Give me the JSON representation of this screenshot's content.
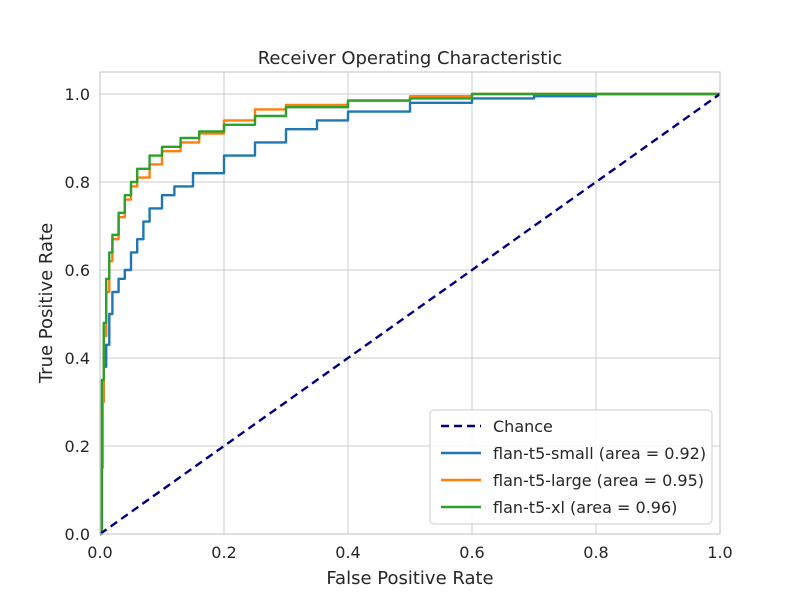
{
  "chart_data": {
    "type": "line",
    "title": "Receiver Operating Characteristic",
    "xlabel": "False Positive Rate",
    "ylabel": "True Positive Rate",
    "xlim": [
      0.0,
      1.0
    ],
    "ylim": [
      0.0,
      1.05
    ],
    "xticks": [
      "0.0",
      "0.2",
      "0.4",
      "0.6",
      "0.8",
      "1.0"
    ],
    "yticks": [
      "0.0",
      "0.2",
      "0.4",
      "0.6",
      "0.8",
      "1.0"
    ],
    "grid": true,
    "legend_position": "lower-right",
    "series": [
      {
        "name": "Chance",
        "color": "#000080",
        "dashed": true,
        "x": [
          0.0,
          1.0
        ],
        "y": [
          0.0,
          1.0
        ]
      },
      {
        "name": "flan-t5-small (area = 0.92)",
        "color": "#1f77b4",
        "dashed": false,
        "x": [
          0.0,
          0.002,
          0.004,
          0.006,
          0.01,
          0.015,
          0.02,
          0.03,
          0.04,
          0.05,
          0.06,
          0.07,
          0.08,
          0.1,
          0.12,
          0.15,
          0.2,
          0.25,
          0.3,
          0.35,
          0.4,
          0.5,
          0.6,
          0.7,
          0.8,
          1.0
        ],
        "y": [
          0.0,
          0.15,
          0.3,
          0.38,
          0.43,
          0.5,
          0.55,
          0.58,
          0.6,
          0.64,
          0.67,
          0.71,
          0.74,
          0.77,
          0.79,
          0.82,
          0.86,
          0.89,
          0.92,
          0.94,
          0.96,
          0.98,
          0.99,
          0.995,
          1.0,
          1.0
        ]
      },
      {
        "name": "flan-t5-large (area = 0.95)",
        "color": "#ff7f0e",
        "dashed": false,
        "x": [
          0.0,
          0.003,
          0.006,
          0.01,
          0.015,
          0.02,
          0.03,
          0.04,
          0.05,
          0.06,
          0.08,
          0.1,
          0.13,
          0.16,
          0.2,
          0.25,
          0.3,
          0.4,
          0.5,
          0.6,
          0.8,
          1.0
        ],
        "y": [
          0.0,
          0.3,
          0.45,
          0.55,
          0.62,
          0.67,
          0.72,
          0.76,
          0.79,
          0.81,
          0.84,
          0.87,
          0.89,
          0.91,
          0.94,
          0.965,
          0.975,
          0.985,
          0.995,
          1.0,
          1.0,
          1.0
        ]
      },
      {
        "name": "flan-t5-xl (area = 0.96)",
        "color": "#2ca02c",
        "dashed": false,
        "x": [
          0.0,
          0.003,
          0.006,
          0.01,
          0.015,
          0.02,
          0.03,
          0.04,
          0.05,
          0.06,
          0.08,
          0.1,
          0.13,
          0.16,
          0.2,
          0.25,
          0.3,
          0.4,
          0.5,
          0.6,
          0.8,
          1.0
        ],
        "y": [
          0.0,
          0.35,
          0.48,
          0.58,
          0.64,
          0.68,
          0.73,
          0.77,
          0.8,
          0.83,
          0.86,
          0.88,
          0.9,
          0.915,
          0.93,
          0.95,
          0.97,
          0.985,
          0.99,
          1.0,
          1.0,
          1.0
        ]
      }
    ]
  }
}
